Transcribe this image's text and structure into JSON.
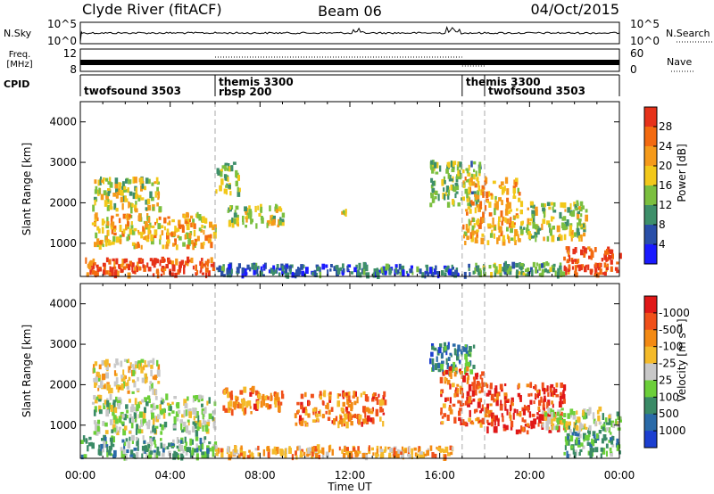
{
  "header": {
    "station": "Clyde River (fitACF)",
    "beam": "Beam 06",
    "date": "04/Oct/2015"
  },
  "top_panels": {
    "nsky": {
      "label": "N.Sky",
      "left_ticks": [
        "10^5",
        "10^0"
      ],
      "right_ticks": [
        "10^5",
        "10^0"
      ],
      "right_label": "N.Search"
    },
    "freq": {
      "label_line1": "Freq.",
      "label_line2": "[MHz]",
      "left_ticks": [
        "12",
        "8"
      ],
      "right_ticks": [
        "60",
        "0"
      ],
      "right_label": "Nave"
    },
    "cpid": {
      "label": "CPID",
      "segments": [
        {
          "start_h": 0,
          "lines": [
            "twofsound 3503"
          ]
        },
        {
          "start_h": 6,
          "lines": [
            "themis 3300",
            "rbsp 200"
          ]
        },
        {
          "start_h": 17,
          "lines": [
            "themis 3300"
          ]
        },
        {
          "start_h": 18,
          "lines": [
            "twofsound 3503"
          ]
        }
      ],
      "boundaries_h": [
        6,
        17,
        18
      ]
    }
  },
  "chart_data": [
    {
      "type": "heatmap",
      "name": "power",
      "ylabel": "Slant Range [km]",
      "xlim": [
        0,
        24
      ],
      "ylim": [
        180,
        4500
      ],
      "yticks": [
        1000,
        2000,
        3000,
        4000
      ],
      "colorbar": {
        "label": "Power [dB]",
        "ticks": [
          "4",
          "8",
          "12",
          "16",
          "20",
          "24",
          "28"
        ],
        "colors": [
          "#1a1aff",
          "#2a4fa8",
          "#3e8f6a",
          "#7bbf3f",
          "#f2c81a",
          "#f59a1a",
          "#f36a10",
          "#e6321a"
        ]
      },
      "regions": [
        {
          "t": [
            0.2,
            6.0
          ],
          "r": [
            200,
            600
          ],
          "level": 6.6
        },
        {
          "t": [
            0.5,
            6.0
          ],
          "r": [
            900,
            1700
          ],
          "level": 4.6
        },
        {
          "t": [
            0.5,
            3.5
          ],
          "r": [
            1800,
            2600
          ],
          "level": 3.6
        },
        {
          "t": [
            6.0,
            7.0
          ],
          "r": [
            2200,
            3000
          ],
          "level": 3.0
        },
        {
          "t": [
            6.5,
            9.0
          ],
          "r": [
            1400,
            1900
          ],
          "level": 3.6
        },
        {
          "t": [
            6.0,
            16.8
          ],
          "r": [
            200,
            450
          ],
          "level": 1.2
        },
        {
          "t": [
            11.6,
            11.9
          ],
          "r": [
            1600,
            1800
          ],
          "level": 4.0
        },
        {
          "t": [
            15.5,
            17.8
          ],
          "r": [
            1900,
            3000
          ],
          "level": 2.8
        },
        {
          "t": [
            17.0,
            19.5
          ],
          "r": [
            1000,
            2600
          ],
          "level": 4.6
        },
        {
          "t": [
            19.5,
            22.5
          ],
          "r": [
            1100,
            2000
          ],
          "level": 3.4
        },
        {
          "t": [
            21.5,
            24.0
          ],
          "r": [
            200,
            900
          ],
          "level": 6.8
        },
        {
          "t": [
            17.0,
            21.5
          ],
          "r": [
            200,
            500
          ],
          "level": 2.4
        }
      ]
    },
    {
      "type": "heatmap",
      "name": "velocity",
      "ylabel": "Slant Range [km]",
      "xlabel": "Time UT",
      "xlim": [
        0,
        24
      ],
      "ylim": [
        180,
        4500
      ],
      "yticks": [
        1000,
        2000,
        3000,
        4000
      ],
      "xticks": [
        "00:00",
        "04:00",
        "08:00",
        "12:00",
        "16:00",
        "20:00",
        "00:00"
      ],
      "colorbar": {
        "label": "Velocity [m s⁻¹]",
        "ticks": [
          "1000",
          "500",
          "100",
          "25",
          "-25",
          "-100",
          "-500",
          "-1000"
        ],
        "colors": [
          "#1c3fd0",
          "#2a6aa8",
          "#3a8a66",
          "#6ccf3a",
          "#c8c8c8",
          "#f4ba2a",
          "#f38a14",
          "#f0501a",
          "#e01818"
        ]
      },
      "regions": [
        {
          "t": [
            0.5,
            6.0
          ],
          "r": [
            800,
            1700
          ],
          "level": 3.6
        },
        {
          "t": [
            0.5,
            3.5
          ],
          "r": [
            1800,
            2600
          ],
          "level": 4.6
        },
        {
          "t": [
            6.3,
            9.0
          ],
          "r": [
            1300,
            1900
          ],
          "level": 6.2
        },
        {
          "t": [
            0.0,
            6.0
          ],
          "r": [
            200,
            700
          ],
          "level": 2.6
        },
        {
          "t": [
            6.0,
            16.8
          ],
          "r": [
            200,
            450
          ],
          "level": 5.4
        },
        {
          "t": [
            9.5,
            13.5
          ],
          "r": [
            1000,
            1800
          ],
          "level": 6.4
        },
        {
          "t": [
            15.5,
            17.5
          ],
          "r": [
            2300,
            3000
          ],
          "level": 1.6
        },
        {
          "t": [
            16.0,
            18.0
          ],
          "r": [
            1000,
            2400
          ],
          "level": 6.8
        },
        {
          "t": [
            18.0,
            21.5
          ],
          "r": [
            800,
            2000
          ],
          "level": 7.4
        },
        {
          "t": [
            21.5,
            24.0
          ],
          "r": [
            200,
            900
          ],
          "level": 2.4
        },
        {
          "t": [
            20.5,
            24.0
          ],
          "r": [
            900,
            1400
          ],
          "level": 3.6
        }
      ]
    }
  ]
}
